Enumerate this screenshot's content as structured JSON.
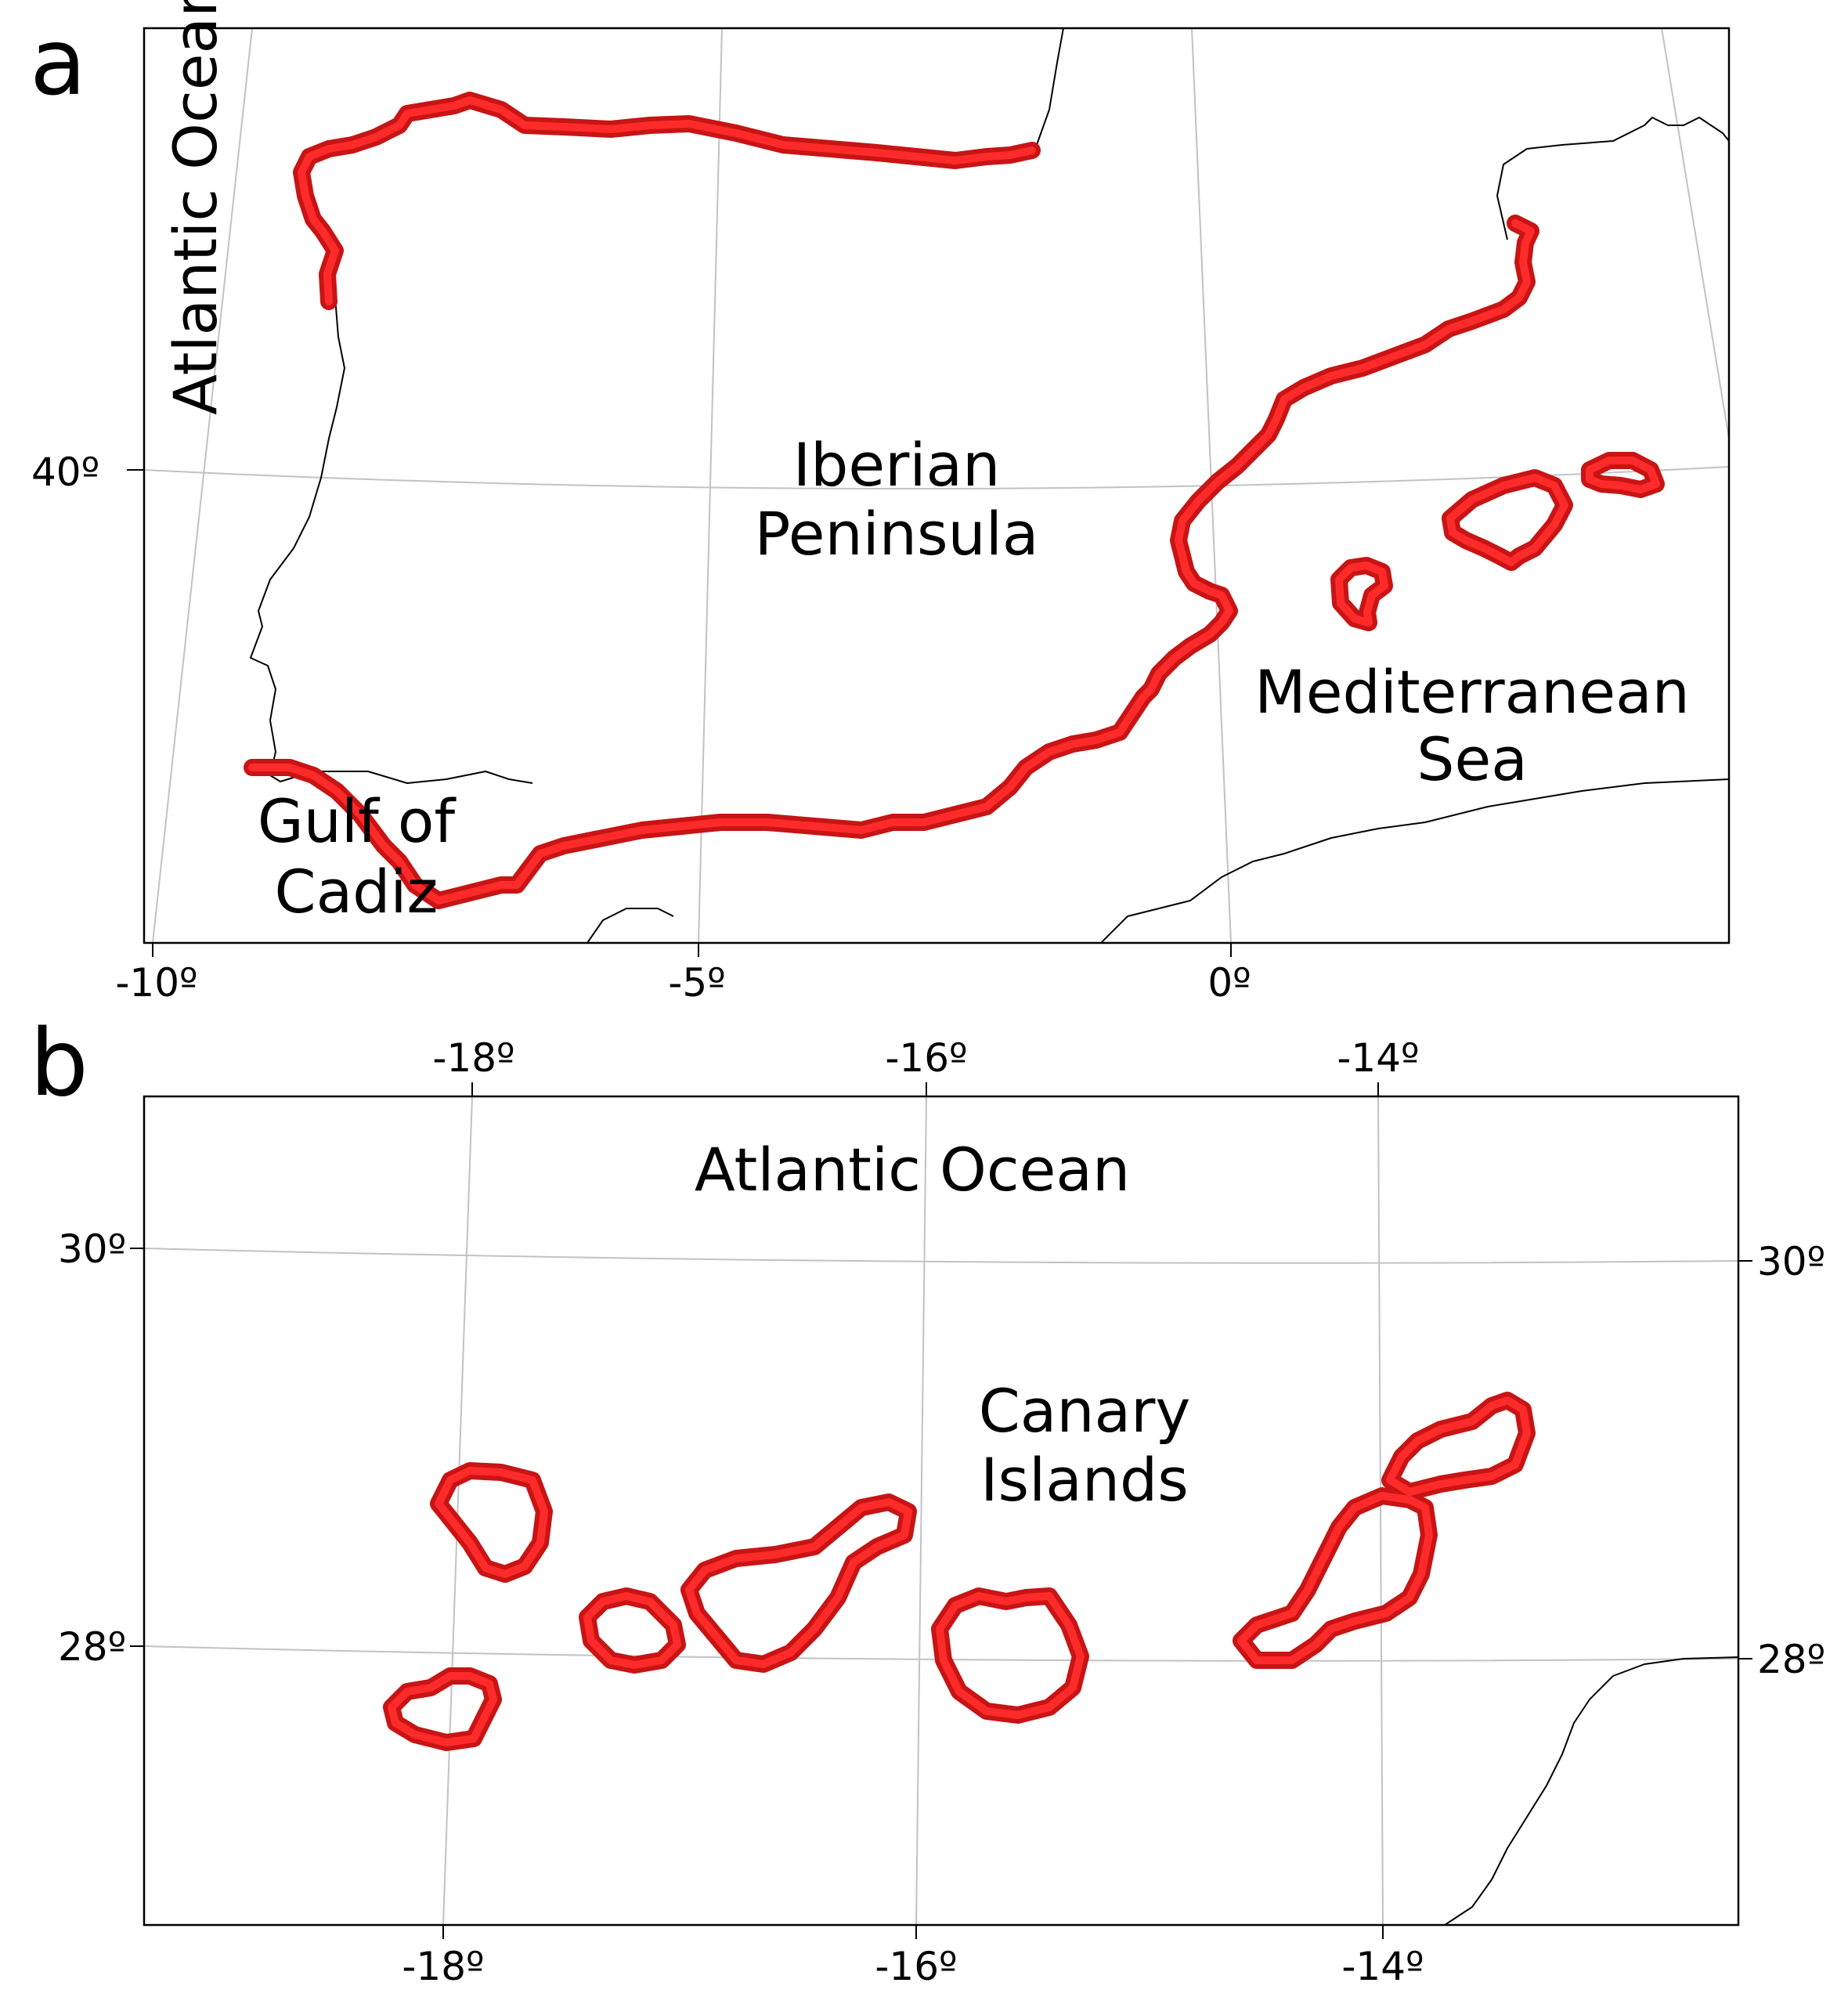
{
  "panels": {
    "a": {
      "letter": "a",
      "ocean_label": "Atlantic Ocean",
      "peninsula_label_line1": "Iberian",
      "peninsula_label_line2": "Peninsula",
      "sea_label_line1": "Mediterranean",
      "sea_label_line2": "Sea",
      "gulf_label_line1": "Gulf of",
      "gulf_label_line2": "Cadiz",
      "lat_ticks": [
        "40º"
      ],
      "lon_ticks": [
        "-10º",
        "-5º",
        "0º"
      ]
    },
    "b": {
      "letter": "b",
      "ocean_label": "Atlantic Ocean",
      "islands_label_line1": "Canary",
      "islands_label_line2": "Islands",
      "lon_ticks_top": [
        "-18º",
        "-16º",
        "-14º"
      ],
      "lon_ticks_bottom": [
        "-18º",
        "-16º",
        "-14º"
      ],
      "lat_ticks_left": [
        "30º",
        "28º"
      ],
      "lat_ticks_right": [
        "30º",
        "28º"
      ]
    }
  },
  "colors": {
    "coast_buffer": "#c81414",
    "coast_buffer_inner": "#ff2a2a",
    "coastline": "#000000",
    "graticule": "#c2c2c2"
  }
}
